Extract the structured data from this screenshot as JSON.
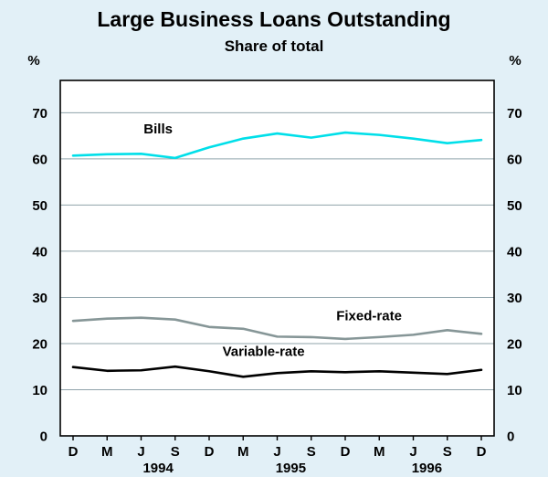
{
  "title": "Large Business Loans Outstanding",
  "subtitle": "Share of total",
  "colors": {
    "background": "#e2f0f7",
    "plot_background": "#ffffff",
    "grid": "#8fa3aa",
    "axis": "#000000"
  },
  "chart_data": {
    "type": "line",
    "title": "Large Business Loans Outstanding",
    "subtitle": "Share of total",
    "y_unit": "%",
    "ylim": [
      0,
      77
    ],
    "y_ticks": [
      0,
      10,
      20,
      30,
      40,
      50,
      60,
      70
    ],
    "grid": true,
    "legend": "inline-labels",
    "x": [
      "D",
      "M",
      "J",
      "S",
      "D",
      "M",
      "J",
      "S",
      "D",
      "M",
      "J",
      "S",
      "D"
    ],
    "year_labels": [
      {
        "label": "1994",
        "x_index": 2.5
      },
      {
        "label": "1995",
        "x_index": 6.4
      },
      {
        "label": "1996",
        "x_index": 10.4
      }
    ],
    "series": [
      {
        "name": "Bills",
        "color": "#00dfe9",
        "values": [
          60.7,
          61.0,
          61.1,
          60.2,
          62.5,
          64.4,
          65.5,
          64.6,
          65.7,
          65.2,
          64.4,
          63.4,
          64.1
        ]
      },
      {
        "name": "Fixed-rate",
        "color": "#869697",
        "values": [
          24.9,
          25.4,
          25.6,
          25.2,
          23.6,
          23.2,
          21.5,
          21.4,
          21.0,
          21.4,
          21.9,
          22.9,
          22.1
        ]
      },
      {
        "name": "Variable-rate",
        "color": "#000000",
        "values": [
          14.9,
          14.1,
          14.2,
          15.0,
          14.0,
          12.8,
          13.6,
          14.0,
          13.8,
          14.0,
          13.7,
          13.4,
          14.3
        ]
      }
    ],
    "annotations": [
      {
        "text": "Bills",
        "x_index": 2.5,
        "value": 65.5
      },
      {
        "text": "Fixed-rate",
        "x_index": 8.7,
        "value": 25.0
      },
      {
        "text": "Variable-rate",
        "x_index": 5.6,
        "value": 17.3
      }
    ]
  }
}
